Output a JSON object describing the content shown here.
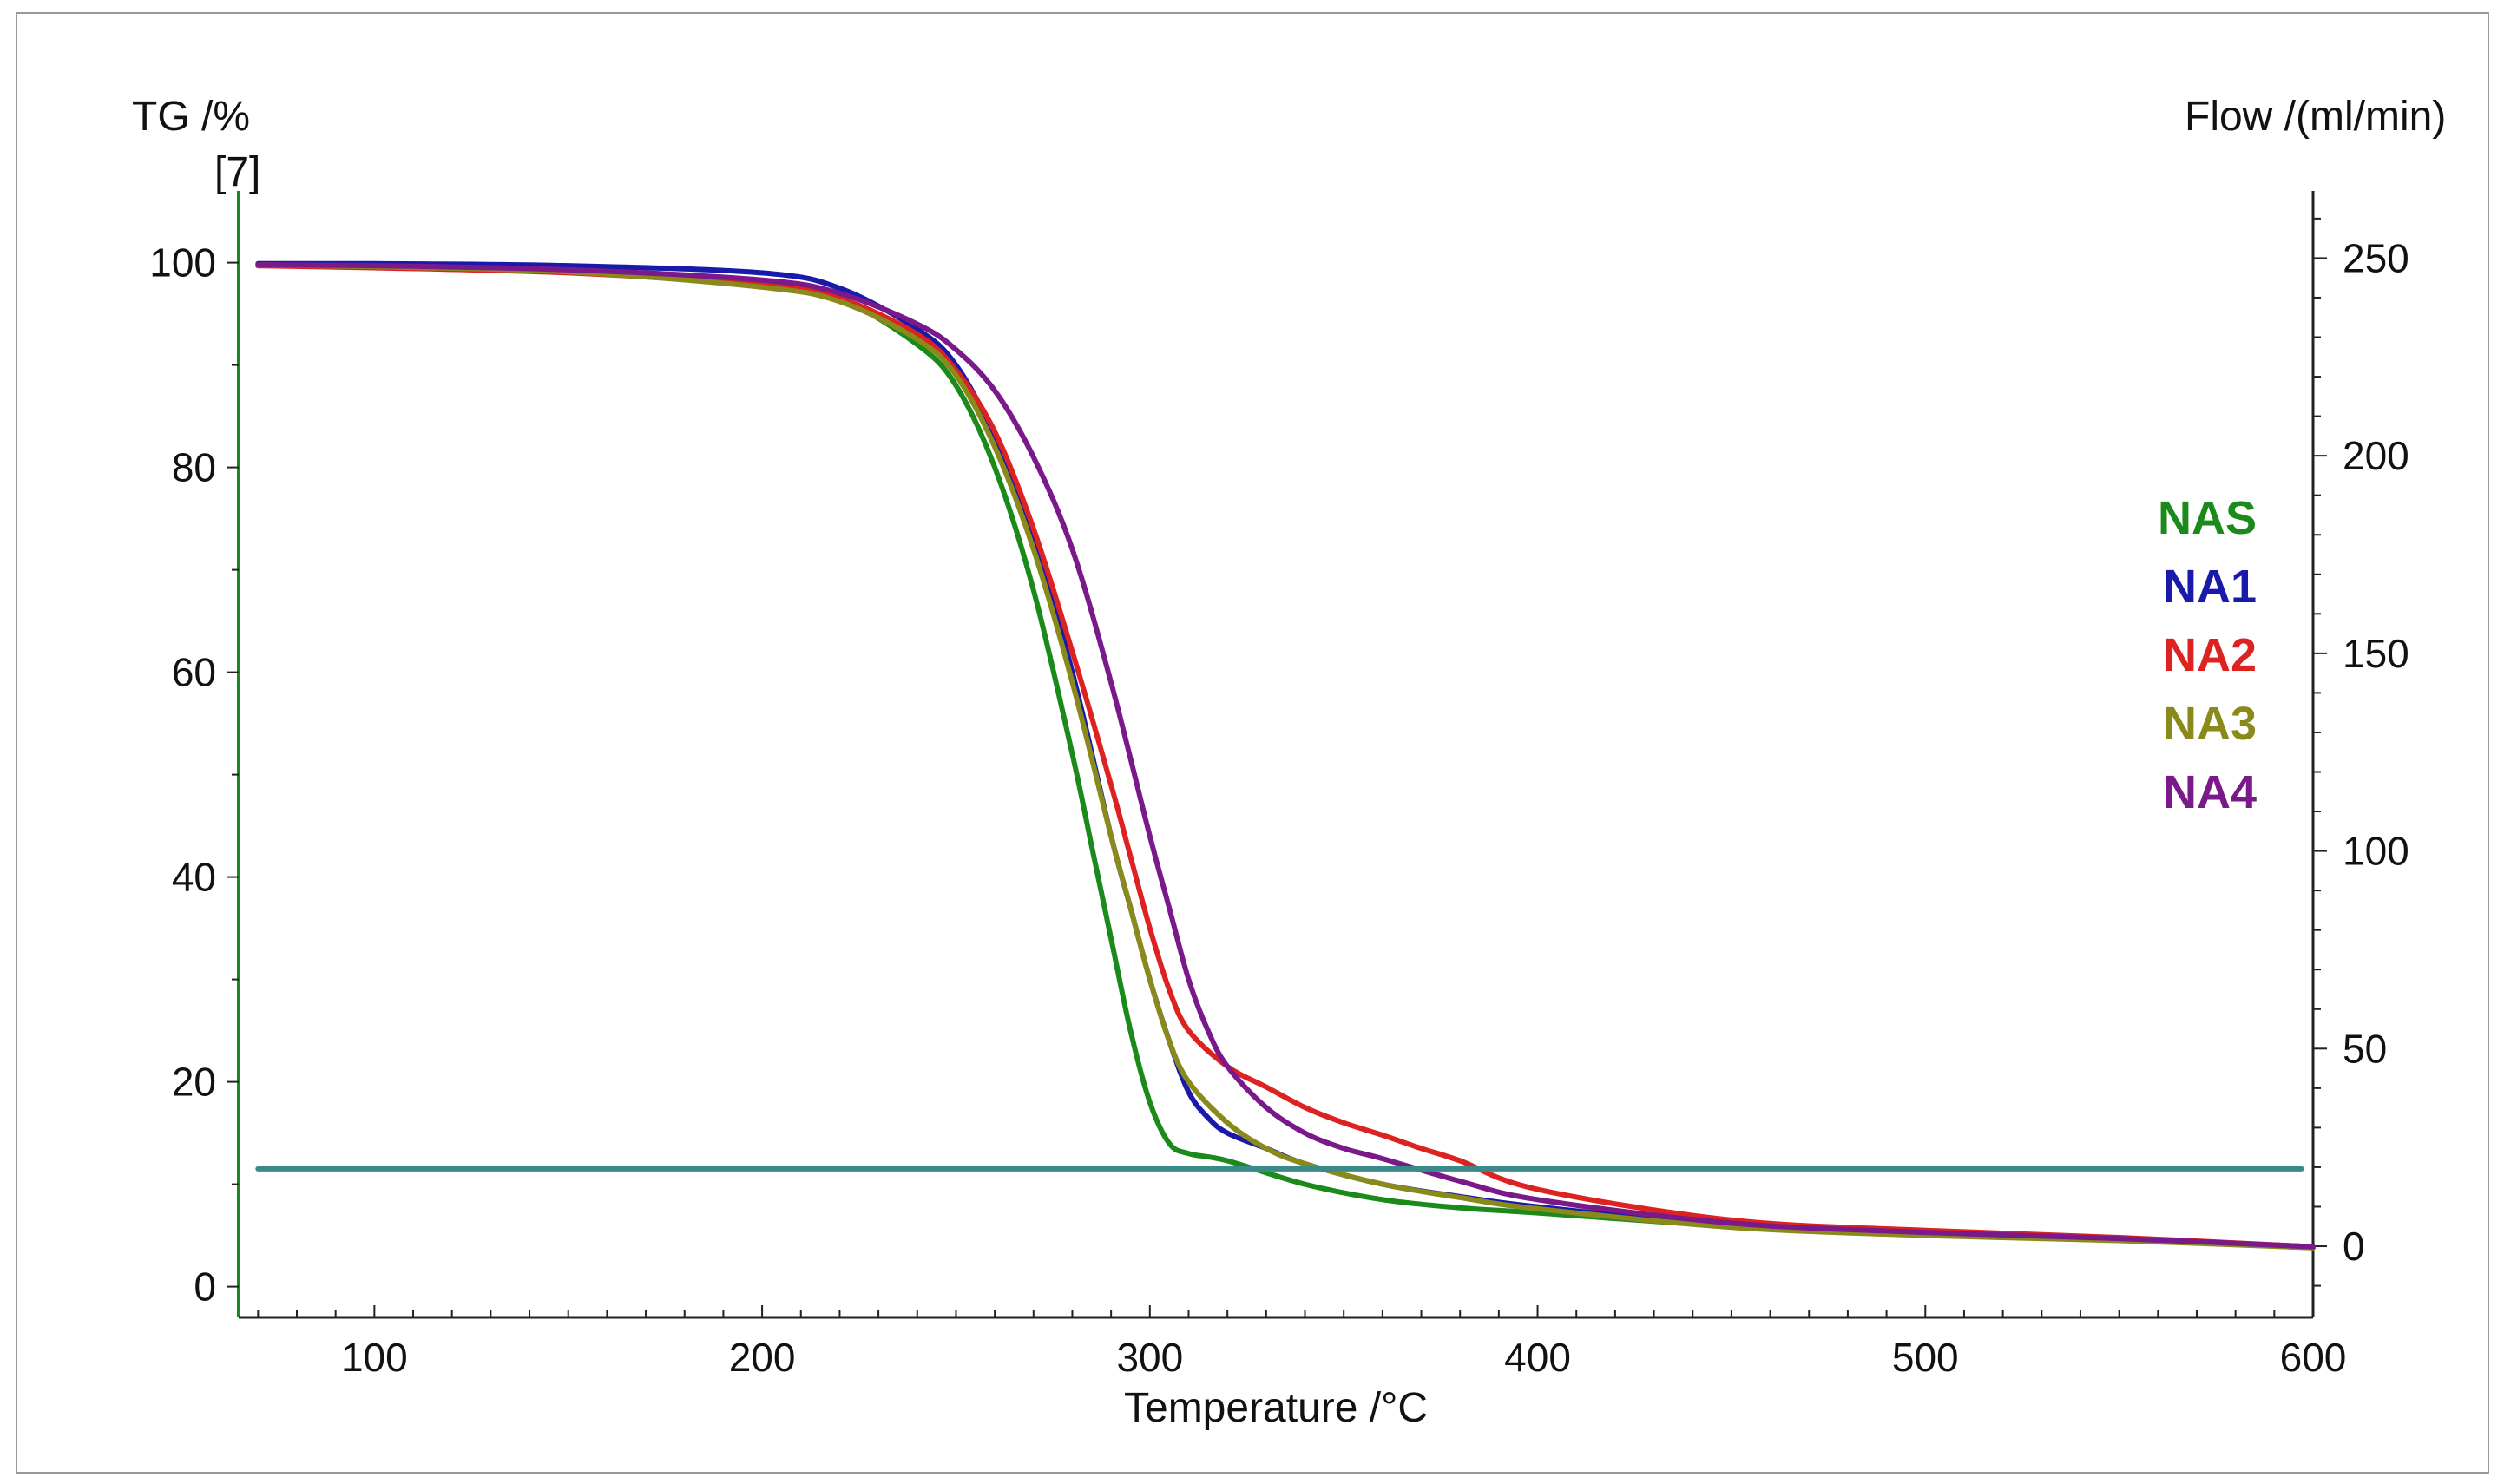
{
  "chart_data": {
    "type": "line",
    "xlabel": "Temperature /°C",
    "ylabel": "TG /%",
    "ylabel_note": "[7]",
    "y2label": "Flow /(ml/min)",
    "xlim": [
      65,
      600
    ],
    "ylim": [
      -3,
      107
    ],
    "y2lim": [
      -18,
      267
    ],
    "xticks": [
      100,
      200,
      300,
      400,
      500,
      600
    ],
    "yticks": [
      0,
      20,
      40,
      60,
      80,
      100
    ],
    "y2ticks": [
      0,
      50,
      100,
      150,
      200,
      250
    ],
    "legend_position": "right",
    "series": [
      {
        "name": "NAS",
        "color": "#1a8a1a",
        "x": [
          70,
          100,
          150,
          200,
          220,
          240,
          250,
          260,
          270,
          280,
          285,
          290,
          295,
          300,
          305,
          310,
          320,
          340,
          360,
          380,
          400,
          450,
          500,
          550,
          600
        ],
        "y": [
          99.7,
          99.7,
          99.3,
          98,
          96.5,
          92,
          88,
          80,
          68,
          52,
          43,
          34,
          25,
          18,
          14,
          13,
          12.3,
          10,
          8.5,
          7.7,
          7.2,
          5.9,
          5.2,
          4.6,
          3.8
        ]
      },
      {
        "name": "NA1",
        "color": "#1a1aaa",
        "x": [
          70,
          100,
          150,
          200,
          220,
          240,
          250,
          260,
          270,
          280,
          290,
          295,
          300,
          305,
          310,
          315,
          320,
          330,
          340,
          360,
          380,
          400,
          450,
          500,
          550,
          600
        ],
        "y": [
          99.9,
          99.9,
          99.7,
          99,
          97.5,
          93.5,
          90,
          83,
          73,
          60,
          44,
          37,
          30,
          24,
          19,
          16.5,
          15,
          13.5,
          12,
          10,
          8.8,
          7.8,
          6,
          5.3,
          4.7,
          3.9
        ]
      },
      {
        "name": "NA2",
        "color": "#dd2222",
        "x": [
          70,
          100,
          150,
          200,
          220,
          240,
          250,
          260,
          270,
          280,
          290,
          295,
          300,
          305,
          310,
          320,
          330,
          340,
          350,
          360,
          370,
          380,
          400,
          450,
          500,
          550,
          600
        ],
        "y": [
          99.7,
          99.5,
          99,
          97.8,
          96.5,
          93,
          89.5,
          83.5,
          74,
          62,
          49,
          42,
          35,
          29,
          25,
          21.5,
          19.5,
          17.5,
          16,
          14.8,
          13.5,
          12.3,
          9.5,
          6.5,
          5.5,
          4.8,
          3.9
        ]
      },
      {
        "name": "NA3",
        "color": "#8a8a1a",
        "x": [
          70,
          100,
          150,
          200,
          220,
          240,
          250,
          260,
          270,
          280,
          290,
          295,
          300,
          305,
          310,
          320,
          330,
          340,
          360,
          380,
          400,
          450,
          500,
          550,
          600
        ],
        "y": [
          99.8,
          99.6,
          99.1,
          97.6,
          96.2,
          92.5,
          89,
          82,
          72,
          59,
          44,
          37,
          30,
          24,
          20,
          16,
          13.5,
          12,
          10,
          8.7,
          7.6,
          5.8,
          5,
          4.5,
          3.8
        ]
      },
      {
        "name": "NA4",
        "color": "#7a1a8a",
        "x": [
          70,
          100,
          150,
          200,
          220,
          240,
          250,
          260,
          270,
          280,
          290,
          300,
          305,
          310,
          315,
          320,
          330,
          340,
          350,
          360,
          380,
          400,
          450,
          500,
          550,
          600
        ],
        "y": [
          99.8,
          99.7,
          99.3,
          98.3,
          97,
          94,
          91.5,
          87.5,
          81,
          72,
          59,
          44,
          37,
          30,
          25,
          21.5,
          17.5,
          15,
          13.5,
          12.5,
          10.3,
          8.5,
          6.2,
          5.3,
          4.7,
          3.9
        ]
      },
      {
        "name": "Flow",
        "color": "#3a8a8a",
        "x": [
          70,
          597
        ],
        "y": [
          11.5,
          11.5
        ]
      }
    ]
  }
}
